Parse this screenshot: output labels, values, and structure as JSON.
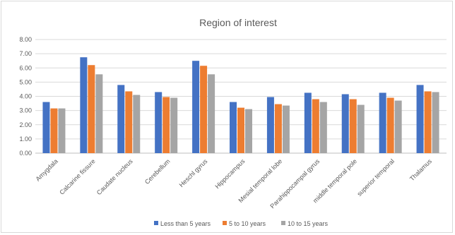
{
  "chart_data": {
    "type": "bar",
    "title": "Region of interest",
    "xlabel": "",
    "ylabel": "",
    "ylim": [
      0,
      8
    ],
    "yticks": [
      "0.00",
      "1.00",
      "2.00",
      "3.00",
      "4.00",
      "5.00",
      "6.00",
      "7.00",
      "8.00"
    ],
    "grid": true,
    "legend_position": "bottom",
    "categories": [
      "Amygdala",
      "Calcarine fissure",
      "Caudate nucleus",
      "Cerebellum",
      "Heschl gyrus",
      "Hippocampus",
      "Mesial temporal lobe",
      "Parahippocampal gyrus",
      "middle temporal pole",
      "superior temporal",
      "Thalamus"
    ],
    "series": [
      {
        "name": "Less than 5 years",
        "color": "#4472c4",
        "values": [
          3.6,
          6.75,
          4.8,
          4.3,
          6.5,
          3.6,
          3.95,
          4.25,
          4.15,
          4.25,
          4.8
        ]
      },
      {
        "name": "5 to 10 years",
        "color": "#ed7d31",
        "values": [
          3.15,
          6.2,
          4.35,
          3.95,
          6.15,
          3.2,
          3.45,
          3.8,
          3.8,
          3.9,
          4.35
        ]
      },
      {
        "name": "10 to 15 years",
        "color": "#a5a5a5",
        "values": [
          3.15,
          5.55,
          4.1,
          3.9,
          5.55,
          3.1,
          3.35,
          3.6,
          3.4,
          3.7,
          4.3
        ]
      }
    ]
  }
}
